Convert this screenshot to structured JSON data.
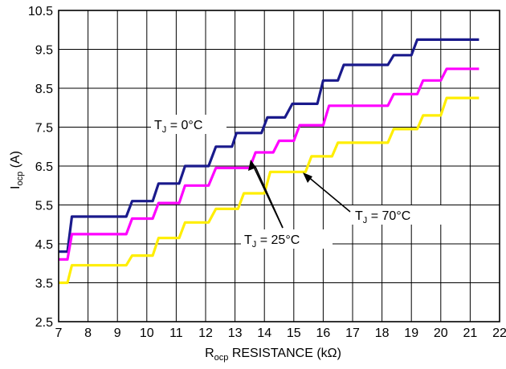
{
  "chart_data": {
    "type": "line",
    "xlabel_main": "R",
    "xlabel_sub": "ocp",
    "xlabel_rest": " RESISTANCE (kΩ)",
    "ylabel_main": "I",
    "ylabel_sub": "ocp",
    "ylabel_rest": " (A)",
    "xlim": [
      7,
      22
    ],
    "ylim": [
      2.5,
      10.5
    ],
    "x_ticks": [
      "7",
      "8",
      "9",
      "10",
      "11",
      "12",
      "13",
      "14",
      "15",
      "16",
      "17",
      "18",
      "19",
      "20",
      "21",
      "22"
    ],
    "y_ticks": [
      "2.5",
      "3.5",
      "4.5",
      "5.5",
      "6.5",
      "7.5",
      "8.5",
      "9.5",
      "10.5"
    ],
    "grid": true,
    "series": [
      {
        "name": "T_J = 0°C",
        "color": "#1a1a8c",
        "x": [
          7.0,
          7.3,
          7.45,
          9.3,
          9.5,
          10.2,
          10.4,
          11.1,
          11.3,
          12.1,
          12.35,
          12.9,
          13.05,
          13.9,
          14.1,
          14.7,
          14.95,
          15.8,
          16.0,
          16.5,
          16.7,
          18.2,
          18.4,
          19.0,
          19.2,
          19.8,
          20.0,
          20.5,
          20.7,
          21.3
        ],
        "y": [
          4.3,
          4.3,
          5.2,
          5.2,
          5.6,
          5.6,
          6.05,
          6.05,
          6.5,
          6.5,
          7.0,
          7.0,
          7.35,
          7.35,
          7.75,
          7.75,
          8.1,
          8.1,
          8.7,
          8.7,
          9.1,
          9.1,
          9.35,
          9.35,
          9.75,
          9.75,
          9.75,
          9.75,
          9.75,
          9.75
        ]
      },
      {
        "name": "T_J = 25°C",
        "color": "#ff00ff",
        "x": [
          7.0,
          7.3,
          7.45,
          9.3,
          9.5,
          10.2,
          10.4,
          11.1,
          11.3,
          12.1,
          12.35,
          13.5,
          13.7,
          14.3,
          14.5,
          15.0,
          15.2,
          16.0,
          16.2,
          16.6,
          16.8,
          18.2,
          18.4,
          19.2,
          19.4,
          20.0,
          20.2,
          20.6,
          20.8,
          21.3
        ],
        "y": [
          4.1,
          4.1,
          4.75,
          4.75,
          5.15,
          5.15,
          5.55,
          5.55,
          6.0,
          6.0,
          6.45,
          6.45,
          6.85,
          6.85,
          7.15,
          7.15,
          7.55,
          7.55,
          8.05,
          8.05,
          8.05,
          8.05,
          8.35,
          8.35,
          8.7,
          8.7,
          9.0,
          9.0,
          9.0,
          9.0
        ]
      },
      {
        "name": "T_J = 70°C",
        "color": "#ffee00",
        "x": [
          7.0,
          7.3,
          7.45,
          9.3,
          9.5,
          10.2,
          10.4,
          11.1,
          11.3,
          12.1,
          12.35,
          13.1,
          13.3,
          14.0,
          14.2,
          15.4,
          15.6,
          16.3,
          16.5,
          18.2,
          18.4,
          19.2,
          19.4,
          20.0,
          20.2,
          20.6,
          20.8,
          21.3
        ],
        "y": [
          3.5,
          3.5,
          3.95,
          3.95,
          4.2,
          4.2,
          4.65,
          4.65,
          5.05,
          5.05,
          5.4,
          5.4,
          5.8,
          5.8,
          6.35,
          6.35,
          6.75,
          6.75,
          7.1,
          7.1,
          7.45,
          7.45,
          7.8,
          7.8,
          8.25,
          8.25,
          8.25,
          8.25
        ]
      }
    ],
    "annotations": [
      {
        "id": "t0",
        "main": "T",
        "sub": "J",
        "rest": " = 0°C"
      },
      {
        "id": "t25",
        "main": "T",
        "sub": "J",
        "rest": " = 25°C"
      },
      {
        "id": "t70",
        "main": "T",
        "sub": "J",
        "rest": " = 70°C"
      }
    ]
  }
}
